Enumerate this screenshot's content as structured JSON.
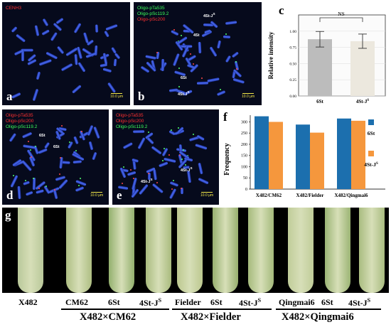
{
  "panels": {
    "a": {
      "label": "a",
      "probes": [
        {
          "text": "CENH3",
          "color": "red"
        }
      ],
      "scale": "10.0 μm"
    },
    "b": {
      "label": "b",
      "probes": [
        {
          "text": "Oligo-pTa535",
          "color": "green"
        },
        {
          "text": "Oligo-pSc119.2",
          "color": "green"
        },
        {
          "text": "Oligo-pSc200",
          "color": "red"
        }
      ],
      "scale": "10.0 μm",
      "marks": [
        "4St-J",
        "4St",
        "6St",
        "4St-J"
      ]
    },
    "c": {
      "label": "c"
    },
    "d": {
      "label": "d",
      "probes": [
        {
          "text": "Oligo-pTa535",
          "color": "red"
        },
        {
          "text": "Oligo-pSc200",
          "color": "red"
        },
        {
          "text": "Oligo-pSc119.2",
          "color": "green"
        }
      ],
      "scale": "10.0 μm",
      "marks": [
        "6St",
        "6St"
      ]
    },
    "e": {
      "label": "e",
      "probes": [
        {
          "text": "Oligo-pTa535",
          "color": "red"
        },
        {
          "text": "Oligo-pSc200",
          "color": "red"
        },
        {
          "text": "Oligo-pSc119.2",
          "color": "green"
        }
      ],
      "scale": "10.0 μm",
      "marks": [
        "4St-J",
        "4St-J"
      ]
    },
    "f": {
      "label": "f"
    },
    "g": {
      "label": "g"
    }
  },
  "chart_data": [
    {
      "id": "c",
      "type": "bar",
      "categories": [
        "6St",
        "4St-J"
      ],
      "values": [
        0.875,
        0.845
      ],
      "errors": [
        0.12,
        0.11
      ],
      "colors": [
        "#bcbcbc",
        "#ece8de"
      ],
      "ylabel": "Relative intensity",
      "ylim": [
        0,
        1.25
      ],
      "yticks": [
        "0.00",
        "0.25",
        "0.50",
        "0.75",
        "1.00"
      ],
      "annotation": "NS"
    },
    {
      "id": "f",
      "type": "bar",
      "categories": [
        "X482/CM62",
        "X482/Fielder",
        "X482/Qingmai6"
      ],
      "series": [
        {
          "name": "6St",
          "values": [
            325,
            288,
            315
          ],
          "color": "#1c6fae"
        },
        {
          "name": "4St-J",
          "values": [
            300,
            252,
            305
          ],
          "color": "#f5973d"
        }
      ],
      "ylabel": "Frequency",
      "ylim": [
        0,
        330
      ],
      "yticks": [
        "0",
        "50",
        "100",
        "150",
        "200",
        "250",
        "300"
      ]
    }
  ],
  "leaves": {
    "labels": [
      "X482",
      "CM62",
      "6St",
      "4St-J",
      "Fielder",
      "6St",
      "4St-J",
      "Qingmai6",
      "6St",
      "4St-J"
    ],
    "groups": [
      "X482×CM62",
      "X482×Fielder",
      "X482×Qingmai6"
    ]
  }
}
